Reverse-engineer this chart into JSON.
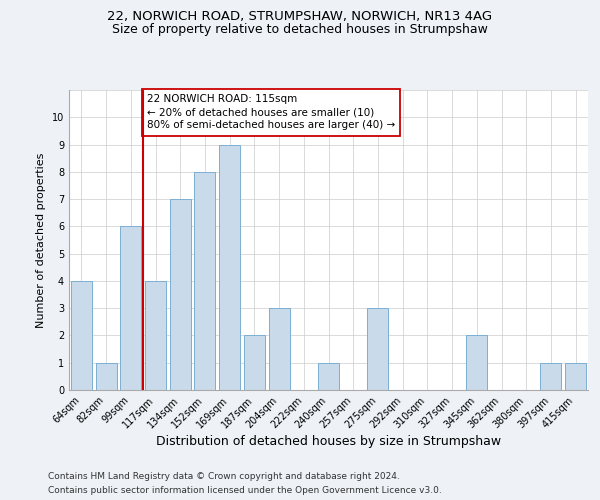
{
  "title_line1": "22, NORWICH ROAD, STRUMPSHAW, NORWICH, NR13 4AG",
  "title_line2": "Size of property relative to detached houses in Strumpshaw",
  "xlabel": "Distribution of detached houses by size in Strumpshaw",
  "ylabel": "Number of detached properties",
  "categories": [
    "64sqm",
    "82sqm",
    "99sqm",
    "117sqm",
    "134sqm",
    "152sqm",
    "169sqm",
    "187sqm",
    "204sqm",
    "222sqm",
    "240sqm",
    "257sqm",
    "275sqm",
    "292sqm",
    "310sqm",
    "327sqm",
    "345sqm",
    "362sqm",
    "380sqm",
    "397sqm",
    "415sqm"
  ],
  "values": [
    4,
    1,
    6,
    4,
    7,
    8,
    9,
    2,
    3,
    0,
    1,
    0,
    3,
    0,
    0,
    0,
    2,
    0,
    0,
    1,
    1
  ],
  "bar_color": "#c9daea",
  "bar_edge_color": "#7bafd4",
  "vline_x": 2.5,
  "vline_color": "#cc0000",
  "annotation_text": "22 NORWICH ROAD: 115sqm\n← 20% of detached houses are smaller (10)\n80% of semi-detached houses are larger (40) →",
  "annotation_box_color": "white",
  "annotation_box_edge": "#cc0000",
  "ylim": [
    0,
    11
  ],
  "yticks": [
    0,
    1,
    2,
    3,
    4,
    5,
    6,
    7,
    8,
    9,
    10,
    11
  ],
  "footer_line1": "Contains HM Land Registry data © Crown copyright and database right 2024.",
  "footer_line2": "Contains public sector information licensed under the Open Government Licence v3.0.",
  "background_color": "#eef2f7",
  "plot_background": "white",
  "title_fontsize": 9.5,
  "subtitle_fontsize": 9,
  "xlabel_fontsize": 9,
  "ylabel_fontsize": 8,
  "tick_fontsize": 7,
  "footer_fontsize": 6.5,
  "annotation_fontsize": 7.5
}
